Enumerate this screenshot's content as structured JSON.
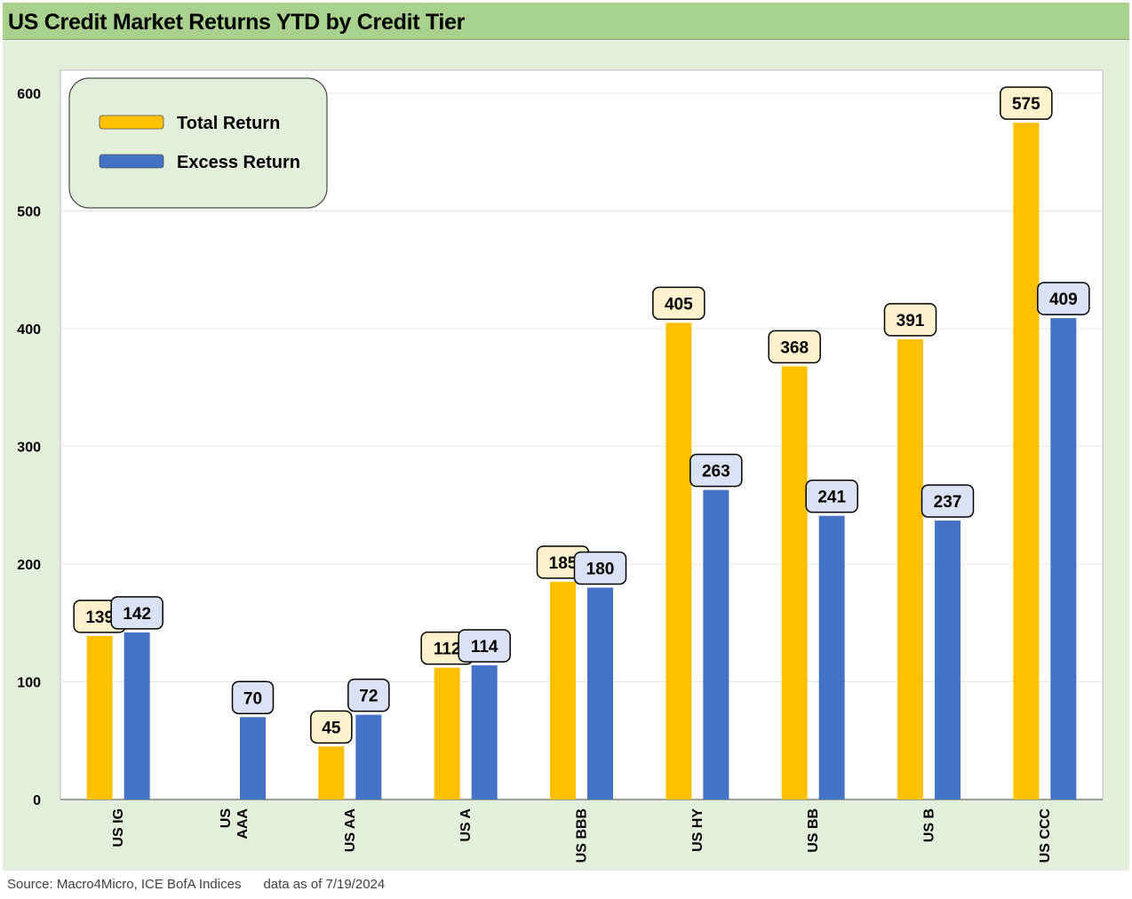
{
  "title": "US Credit Market Returns YTD by Credit Tier",
  "source": "Source: Macro4Micro, ICE BofA Indices      data as of 7/19/2024",
  "colors": {
    "total_return": "#ffc000",
    "excess_return": "#4472c4",
    "total_label_bg": "#fff2cc",
    "excess_label_bg": "#dae3f3",
    "plot_bg": "#ffffff",
    "panel_bg": "#e2efda",
    "title_bg": "#a9d18e",
    "legend_bg": "#e2efda"
  },
  "chart_data": {
    "type": "bar",
    "title": "US Credit Market Returns YTD by Credit Tier",
    "xlabel": "",
    "ylabel": "",
    "ylim": [
      0,
      600
    ],
    "yticks": [
      0,
      100,
      200,
      300,
      400,
      500,
      600
    ],
    "grid": true,
    "legend_position": "top-left",
    "categories": [
      [
        "US IG"
      ],
      [
        "US",
        "AAA"
      ],
      [
        "US AA"
      ],
      [
        "US A"
      ],
      [
        "US BBB"
      ],
      [
        "US HY"
      ],
      [
        "US BB"
      ],
      [
        "US B"
      ],
      [
        "US CCC"
      ]
    ],
    "series": [
      {
        "name": "Total Return",
        "values": [
          139,
          null,
          45,
          112,
          185,
          405,
          368,
          391,
          575
        ]
      },
      {
        "name": "Excess Return",
        "values": [
          142,
          70,
          72,
          114,
          180,
          263,
          241,
          237,
          409
        ]
      }
    ]
  }
}
